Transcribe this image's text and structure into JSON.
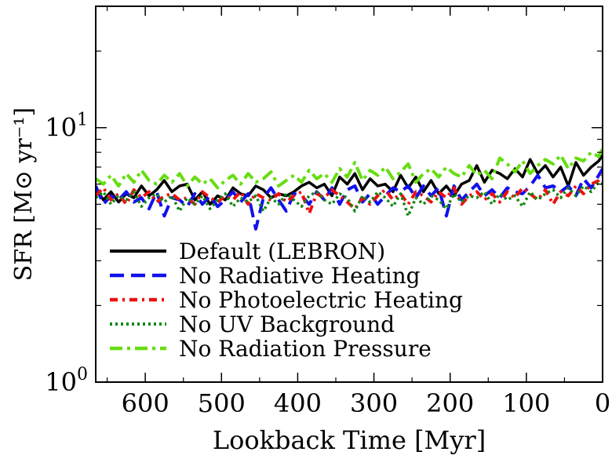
{
  "chart_data": {
    "type": "line",
    "xlabel": "Lookback Time  [Myr]",
    "ylabel": "SFR  [M⊙ yr⁻¹]",
    "xlim": [
      665,
      0
    ],
    "ylim": [
      1,
      30
    ],
    "yscale": "log",
    "x_ticks": [
      600,
      500,
      400,
      300,
      200,
      100,
      0
    ],
    "x_tick_labels": [
      "600",
      "500",
      "400",
      "300",
      "200",
      "100",
      "0"
    ],
    "y_major_ticks": [
      {
        "value": 1,
        "base": "10",
        "exp": "0"
      },
      {
        "value": 10,
        "base": "10",
        "exp": "1"
      }
    ],
    "y_minor_ticks": [
      2,
      3,
      4,
      5,
      6,
      7,
      8,
      9,
      20,
      30
    ],
    "legend_position": "lower-left",
    "x": [
      665,
      655,
      645,
      635,
      625,
      615,
      605,
      595,
      585,
      575,
      565,
      555,
      545,
      535,
      525,
      515,
      505,
      495,
      485,
      475,
      465,
      455,
      445,
      435,
      425,
      415,
      405,
      395,
      385,
      375,
      365,
      355,
      345,
      335,
      325,
      315,
      305,
      295,
      285,
      275,
      265,
      255,
      245,
      235,
      225,
      215,
      205,
      195,
      185,
      175,
      165,
      155,
      145,
      135,
      125,
      115,
      105,
      95,
      85,
      75,
      65,
      55,
      45,
      35,
      25,
      15,
      5,
      0
    ],
    "series": [
      {
        "name": "Default (LEBRON)",
        "color": "#000000",
        "dash": "solid",
        "values": [
          5.8,
          5.2,
          5.6,
          5.1,
          5.5,
          5.3,
          5.9,
          5.4,
          5.7,
          6.2,
          5.6,
          5.9,
          6.0,
          5.2,
          5.6,
          5.0,
          5.4,
          5.2,
          5.8,
          5.5,
          5.4,
          5.9,
          5.7,
          5.3,
          5.5,
          5.4,
          5.6,
          5.9,
          6.1,
          5.8,
          6.0,
          5.4,
          6.4,
          6.0,
          6.6,
          5.7,
          6.3,
          5.9,
          6.0,
          5.6,
          6.5,
          5.8,
          6.4,
          5.6,
          6.2,
          5.5,
          5.9,
          5.4,
          6.0,
          6.2,
          7.1,
          6.1,
          6.8,
          6.6,
          6.3,
          6.9,
          6.4,
          7.5,
          6.6,
          7.1,
          6.4,
          7.0,
          5.9,
          7.3,
          6.5,
          7.0,
          7.4,
          7.8
        ]
      },
      {
        "name": "No Radiative Heating",
        "color": "#1010ee",
        "dash": "dashed",
        "values": [
          5.9,
          5.0,
          5.4,
          5.2,
          5.6,
          5.1,
          5.3,
          4.8,
          5.6,
          4.5,
          5.3,
          5.2,
          4.9,
          5.5,
          5.0,
          5.4,
          4.9,
          5.2,
          5.6,
          5.1,
          5.5,
          4.0,
          5.3,
          5.8,
          5.2,
          4.7,
          5.5,
          5.4,
          5.0,
          5.6,
          5.2,
          5.8,
          5.0,
          5.7,
          5.9,
          5.1,
          5.5,
          5.0,
          5.4,
          5.8,
          5.6,
          5.9,
          5.3,
          5.9,
          5.4,
          5.8,
          4.5,
          5.9,
          5.2,
          5.6,
          6.0,
          5.4,
          5.7,
          5.3,
          5.8,
          5.6,
          5.5,
          5.9,
          6.5,
          5.8,
          5.9,
          5.6,
          5.9,
          5.4,
          6.3,
          5.8,
          6.5,
          6.9
        ]
      },
      {
        "name": "No Photoelectric Heating",
        "color": "#ee1010",
        "dash": "dashdot",
        "values": [
          5.4,
          5.8,
          5.2,
          5.5,
          5.0,
          5.7,
          5.3,
          5.6,
          5.1,
          5.4,
          5.5,
          5.2,
          5.3,
          5.0,
          5.6,
          5.3,
          5.1,
          5.4,
          5.2,
          5.6,
          5.0,
          5.5,
          5.3,
          5.2,
          5.5,
          5.1,
          5.4,
          5.6,
          4.6,
          5.5,
          5.3,
          5.7,
          5.4,
          5.1,
          4.8,
          5.3,
          5.0,
          5.4,
          5.7,
          5.2,
          5.5,
          5.0,
          5.6,
          5.4,
          5.1,
          5.6,
          5.3,
          5.8,
          5.0,
          5.4,
          5.6,
          5.2,
          5.5,
          5.1,
          5.6,
          5.3,
          5.8,
          5.5,
          5.2,
          5.7,
          5.0,
          5.6,
          5.4,
          5.9,
          5.5,
          6.0,
          6.2,
          6.5
        ]
      },
      {
        "name": "No UV Background",
        "color": "#108810",
        "dash": "dotted",
        "values": [
          5.3,
          5.6,
          5.0,
          5.4,
          5.2,
          5.6,
          4.9,
          5.3,
          5.5,
          5.1,
          5.4,
          4.7,
          5.3,
          5.0,
          5.4,
          4.8,
          5.2,
          5.5,
          4.9,
          5.3,
          5.1,
          5.4,
          4.7,
          5.3,
          5.0,
          5.5,
          5.2,
          4.9,
          5.4,
          5.6,
          5.2,
          5.0,
          5.5,
          5.3,
          4.7,
          5.4,
          5.1,
          5.6,
          5.3,
          4.9,
          5.5,
          4.5,
          5.3,
          5.0,
          5.4,
          5.2,
          4.8,
          5.5,
          5.1,
          5.4,
          5.3,
          5.6,
          5.0,
          5.5,
          5.2,
          5.4,
          4.9,
          5.6,
          5.2,
          5.5,
          5.7,
          5.3,
          5.8,
          5.4,
          5.9,
          5.6,
          6.1,
          6.0
        ]
      },
      {
        "name": "No Radiation Pressure",
        "color": "#66dd11",
        "dash": "dashdotted",
        "values": [
          6.3,
          6.0,
          6.5,
          5.9,
          6.6,
          6.1,
          6.8,
          6.2,
          6.0,
          6.5,
          6.1,
          6.6,
          5.9,
          6.4,
          6.0,
          6.3,
          5.8,
          6.2,
          6.5,
          6.0,
          6.6,
          6.1,
          6.3,
          6.7,
          5.9,
          6.2,
          6.5,
          6.1,
          6.8,
          6.3,
          6.6,
          6.1,
          6.9,
          6.4,
          7.3,
          6.2,
          6.8,
          6.5,
          7.0,
          6.3,
          6.7,
          7.2,
          6.1,
          6.6,
          6.9,
          6.4,
          7.0,
          6.6,
          6.4,
          7.1,
          6.5,
          6.8,
          6.3,
          7.6,
          7.2,
          6.7,
          7.4,
          6.6,
          7.1,
          7.5,
          7.2,
          7.8,
          6.9,
          7.6,
          7.4,
          8.0,
          7.7,
          8.3
        ]
      }
    ]
  }
}
